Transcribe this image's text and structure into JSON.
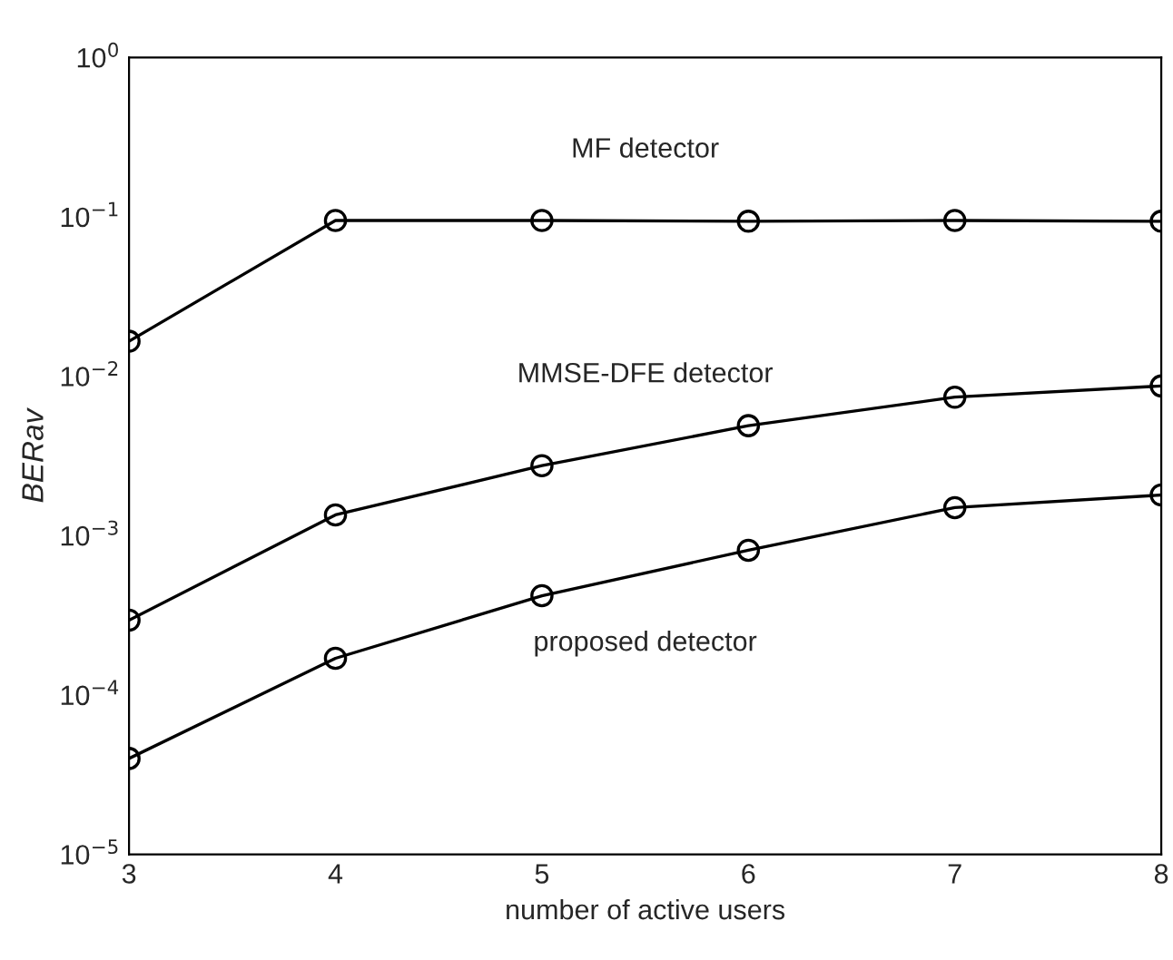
{
  "chart_data": {
    "type": "line",
    "xlabel": "number of active users",
    "ylabel": "BERav",
    "x": [
      3,
      4,
      5,
      6,
      7,
      8
    ],
    "series": [
      {
        "name": "MF detector",
        "color": "#000000",
        "values": [
          0.0166,
          0.095,
          0.095,
          0.094,
          0.095,
          0.094
        ]
      },
      {
        "name": "MMSE-DFE detector",
        "color": "#000000",
        "values": [
          0.000295,
          0.00135,
          0.00275,
          0.0049,
          0.0074,
          0.0087
        ]
      },
      {
        "name": "proposed detector",
        "color": "#000000",
        "values": [
          4e-05,
          0.00017,
          0.00042,
          0.00081,
          0.0015,
          0.0018
        ]
      }
    ],
    "log": "y",
    "xlim": [
      3,
      8
    ],
    "ylim": [
      1e-05,
      1
    ],
    "xticks": [
      3,
      4,
      5,
      6,
      7,
      8
    ],
    "yticks": [
      {
        "value": 1e-05,
        "label": "10$^{−5}$"
      },
      {
        "value": 0.0001,
        "label": "10$^{−4}$"
      },
      {
        "value": 0.001,
        "label": "10$^{−3}$"
      },
      {
        "value": 0.01,
        "label": "10$^{−2}$"
      },
      {
        "value": 0.1,
        "label": "10$^{−1}$"
      },
      {
        "value": 1,
        "label": "10$^{0}$"
      }
    ],
    "marker": "circle",
    "line_style": "solid",
    "grid": false,
    "legend": false
  }
}
